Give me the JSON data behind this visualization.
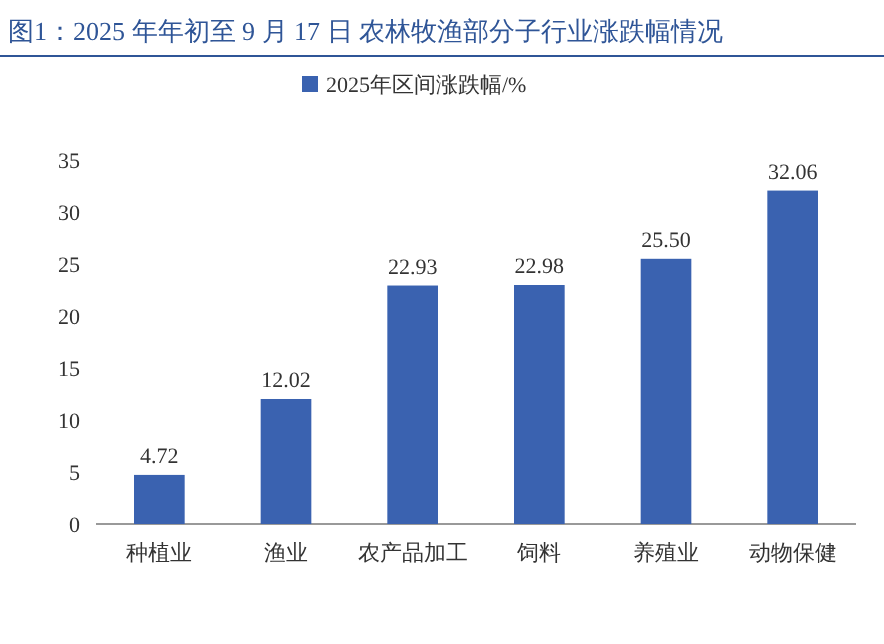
{
  "chart_data": {
    "type": "bar",
    "title": "图1：2025 年年初至 9 月 17 日 农林牧渔部分子行业涨跌幅情况",
    "categories": [
      "种植业",
      "渔业",
      "农产品加工",
      "饲料",
      "养殖业",
      "动物保健"
    ],
    "series": [
      {
        "name": "2025年区间涨跌幅/%",
        "color": "#3a62b0",
        "values": [
          4.72,
          12.02,
          22.93,
          22.98,
          25.5,
          32.06
        ],
        "value_labels": [
          "4.72",
          "12.02",
          "22.93",
          "22.98",
          "25.50",
          "32.06"
        ]
      }
    ],
    "ylim": [
      0,
      35
    ],
    "yticks": [
      0,
      5,
      10,
      15,
      20,
      25,
      30,
      35
    ],
    "grid": false,
    "legend": "top"
  }
}
